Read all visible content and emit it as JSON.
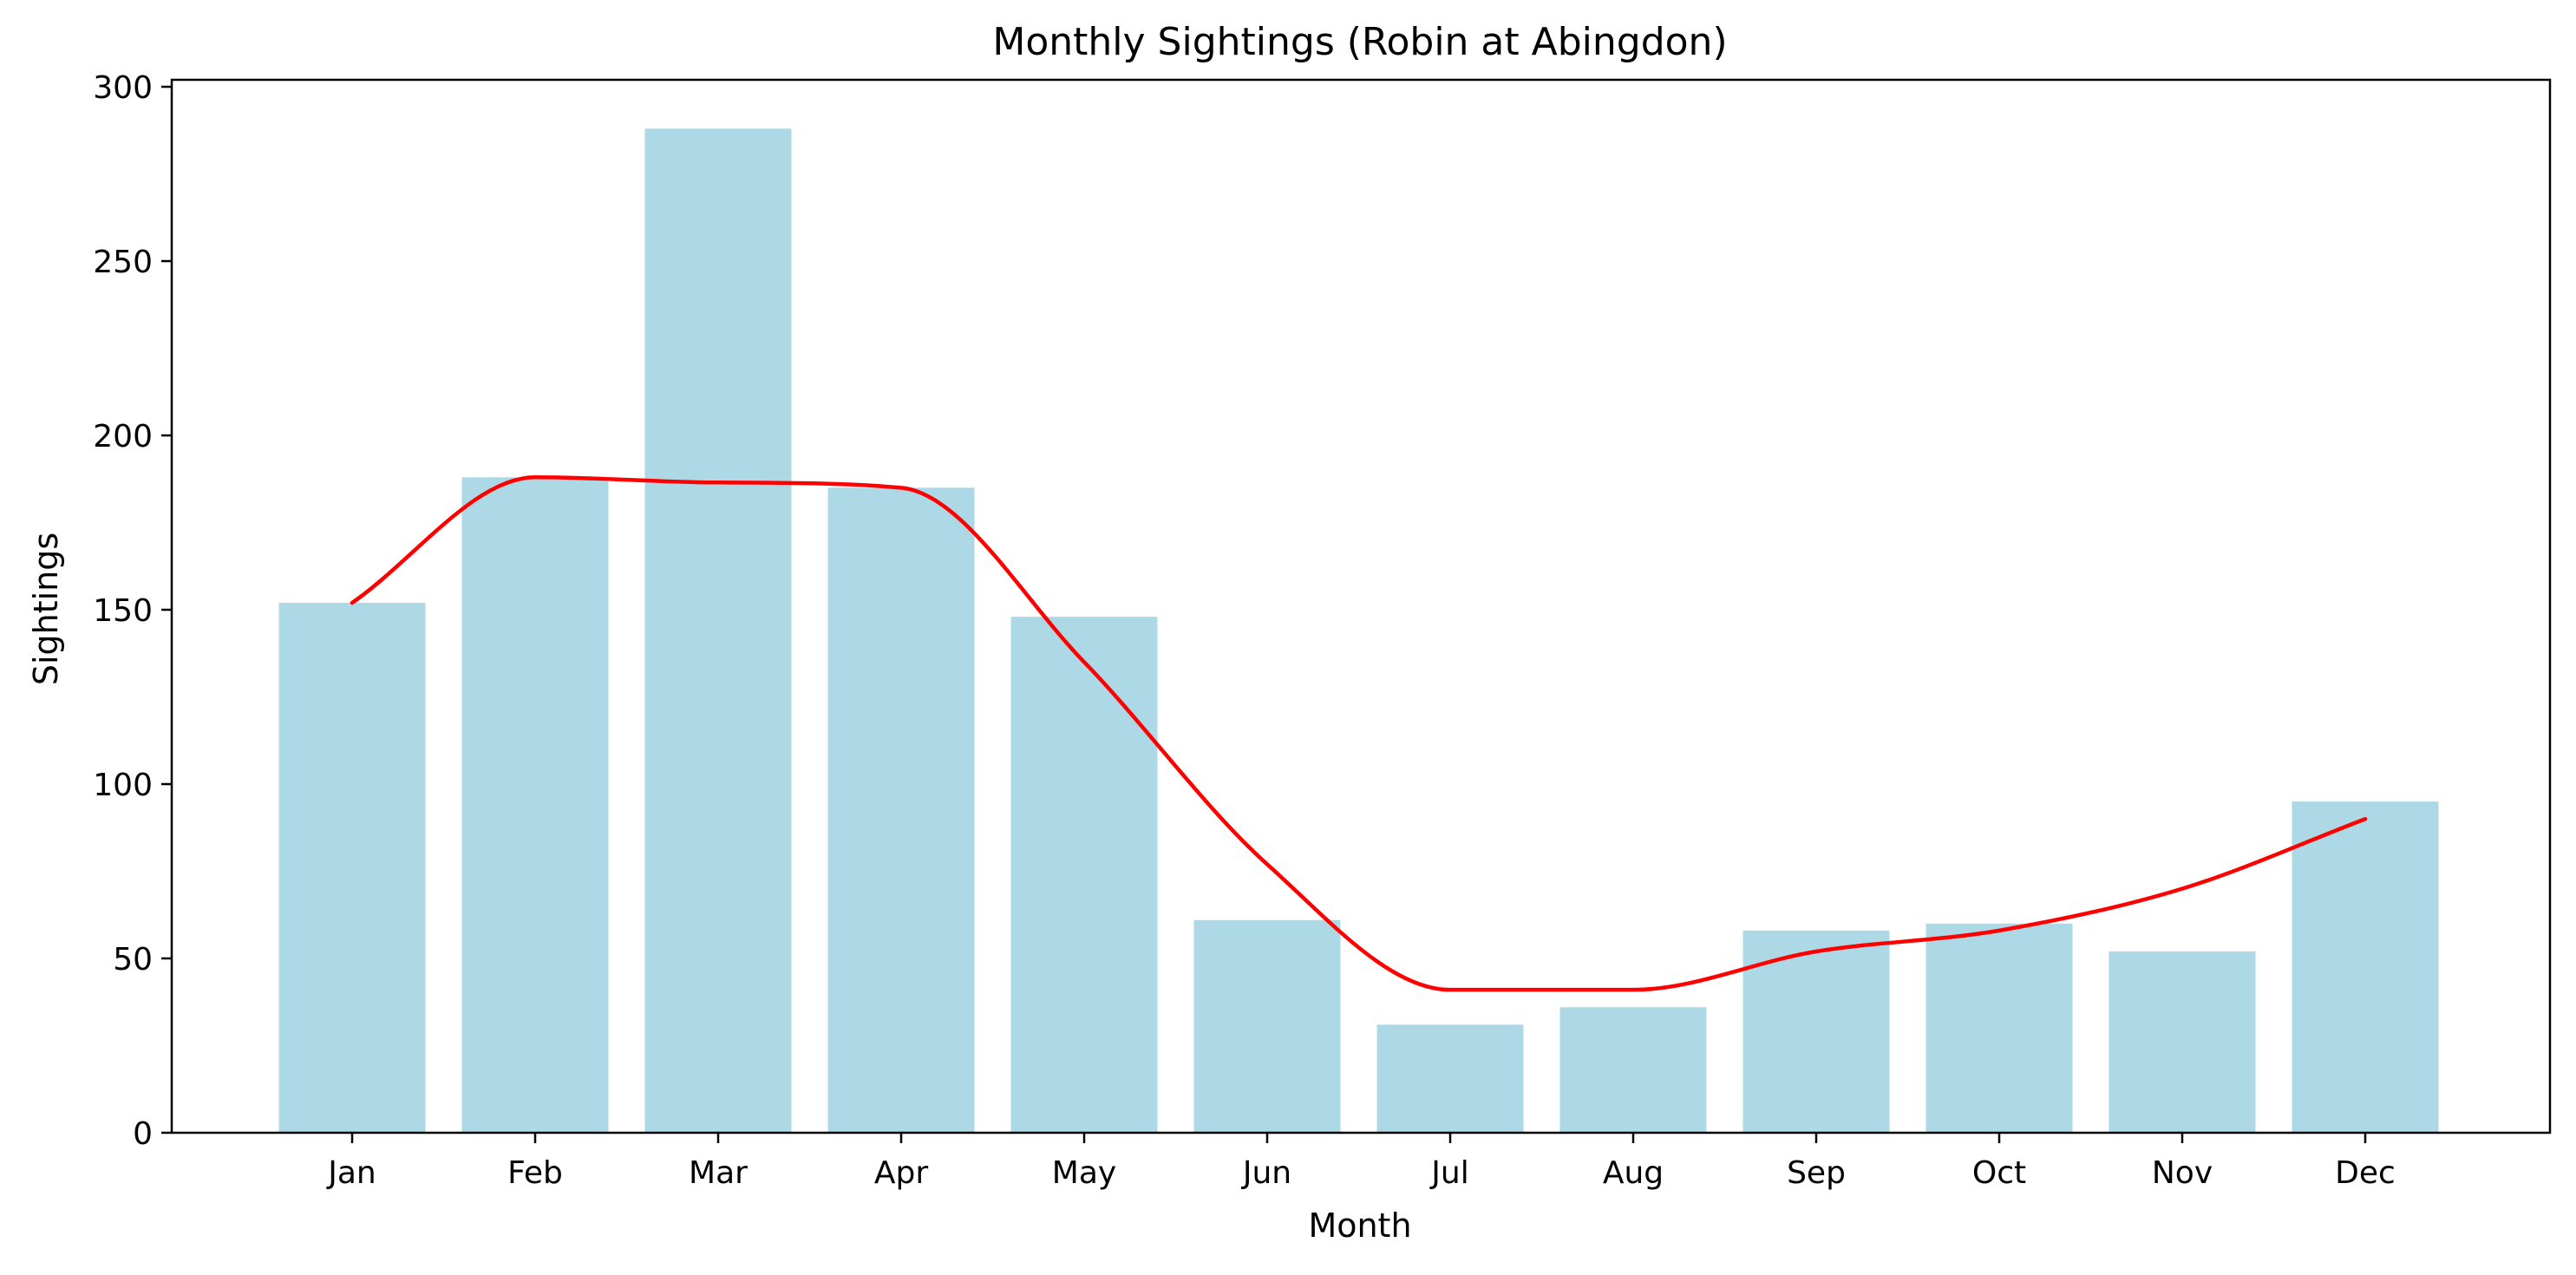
{
  "chart_data": {
    "type": "bar",
    "title": "Monthly Sightings (Robin at Abingdon)",
    "xlabel": "Month",
    "ylabel": "Sightings",
    "categories": [
      "Jan",
      "Feb",
      "Mar",
      "Apr",
      "May",
      "Jun",
      "Jul",
      "Aug",
      "Sep",
      "Oct",
      "Nov",
      "Dec"
    ],
    "values": [
      152,
      188,
      288,
      185,
      148,
      61,
      31,
      36,
      58,
      60,
      52,
      95
    ],
    "trend": [
      152,
      188,
      186.5,
      185,
      135,
      77,
      41,
      41,
      52,
      58,
      70,
      90
    ],
    "ylim": [
      0,
      302
    ],
    "yticks": [
      0,
      50,
      100,
      150,
      200,
      250,
      300
    ],
    "grid": false,
    "legend": "none",
    "colors": {
      "bar": "#add8e6",
      "trend": "#ff0000",
      "axis": "#000000"
    }
  }
}
